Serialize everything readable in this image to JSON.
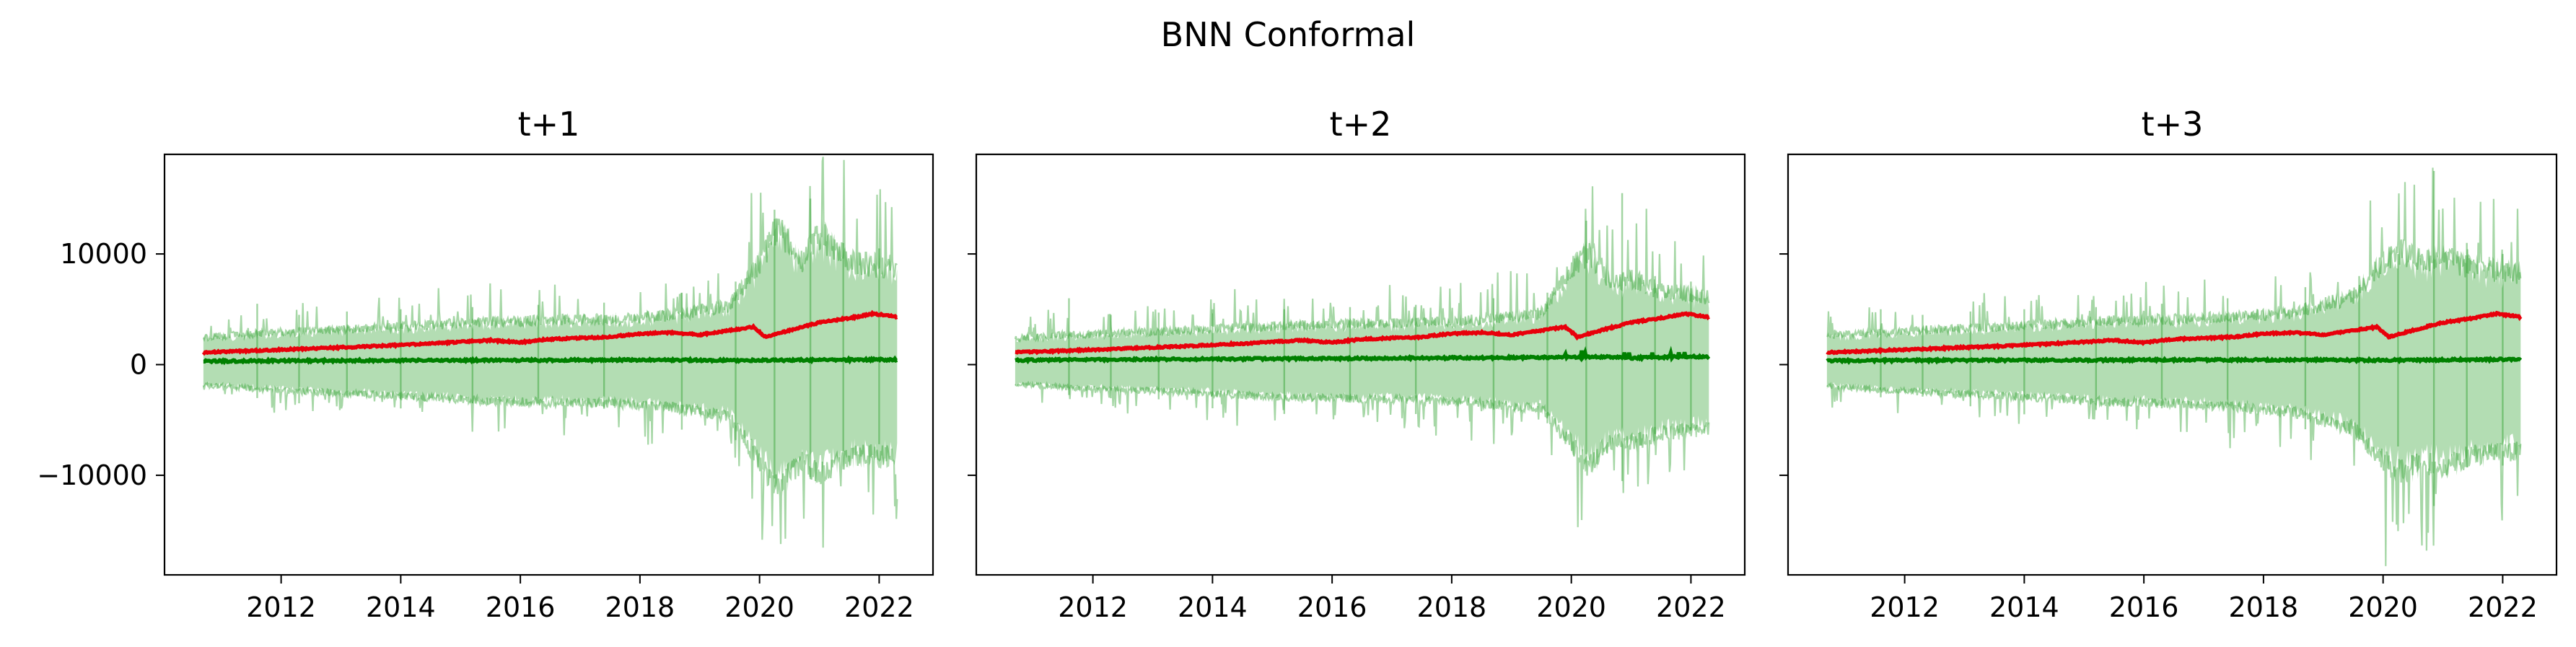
{
  "figure": {
    "title": "BNN Conformal"
  },
  "chart_data": [
    {
      "type": "line",
      "title": "t+1",
      "x_ticks": [
        "2012",
        "2014",
        "2016",
        "2018",
        "2020",
        "2022"
      ],
      "y_ticks": [
        "−10000",
        "0",
        "10000"
      ],
      "y_tick_values": [
        -10000,
        0,
        10000
      ],
      "xlim": [
        2010.05,
        2022.9
      ],
      "ylim": [
        -19000,
        19000
      ],
      "grid": false,
      "series": [
        {
          "role": "actual",
          "color": "#e8000b",
          "x": [
            2010.7,
            2011.5,
            2012.5,
            2013.5,
            2014.5,
            2015.5,
            2016.0,
            2016.5,
            2017.5,
            2018.0,
            2018.5,
            2019.0,
            2019.5,
            2019.9,
            2020.1,
            2020.5,
            2021.0,
            2021.5,
            2021.9,
            2022.3
          ],
          "y": [
            1100,
            1250,
            1450,
            1650,
            1900,
            2200,
            2000,
            2300,
            2500,
            2800,
            2900,
            2700,
            3100,
            3400,
            2500,
            3100,
            3800,
            4200,
            4600,
            4300
          ]
        },
        {
          "role": "predicted",
          "color": "#008000",
          "x": [
            2010.7,
            2012.0,
            2014.0,
            2016.0,
            2018.0,
            2020.0,
            2022.3
          ],
          "y": [
            300,
            350,
            380,
            400,
            420,
            380,
            450
          ]
        },
        {
          "role": "interval",
          "color": "#2ca02c",
          "x": [
            2010.7,
            2011.5,
            2012.5,
            2013.5,
            2014.5,
            2015.5,
            2016.5,
            2017.5,
            2018.5,
            2019.5,
            2020.0,
            2020.3,
            2020.7,
            2021.0,
            2021.5,
            2022.3
          ],
          "upper": [
            2400,
            2700,
            3000,
            3200,
            3500,
            3800,
            3900,
            4000,
            4300,
            5200,
            9000,
            12000,
            9000,
            11500,
            9000,
            8500
          ],
          "lower": [
            -1800,
            -2100,
            -2400,
            -2600,
            -2900,
            -3200,
            -3300,
            -3400,
            -3700,
            -4600,
            -8500,
            -11000,
            -8500,
            -9500,
            -8000,
            -8000
          ],
          "peak_upper": [
            5500,
            4500,
            4800,
            5000,
            5200,
            5400,
            5600,
            6500,
            7500,
            14000,
            15000,
            11000,
            10500
          ],
          "peak_lower": [
            -5000,
            -4000,
            -4300,
            -4500,
            -4800,
            -5000,
            -5200,
            -6000,
            -7000,
            -13000,
            -14800,
            -10500,
            -9800
          ]
        }
      ]
    },
    {
      "type": "line",
      "title": "t+2",
      "x_ticks": [
        "2012",
        "2014",
        "2016",
        "2018",
        "2020",
        "2022"
      ],
      "y_ticks": [
        "−10000",
        "0",
        "10000"
      ],
      "y_tick_values": [
        -10000,
        0,
        10000
      ],
      "xlim": [
        2010.05,
        2022.9
      ],
      "ylim": [
        -19000,
        19000
      ],
      "grid": false,
      "series": [
        {
          "role": "actual",
          "color": "#e8000b",
          "x": [
            2010.7,
            2011.5,
            2012.5,
            2013.5,
            2014.5,
            2015.5,
            2016.0,
            2016.5,
            2017.5,
            2018.0,
            2018.5,
            2019.0,
            2019.5,
            2019.9,
            2020.1,
            2020.5,
            2021.0,
            2021.5,
            2021.9,
            2022.3
          ],
          "y": [
            1100,
            1250,
            1450,
            1650,
            1900,
            2200,
            2000,
            2300,
            2500,
            2800,
            2900,
            2700,
            3100,
            3400,
            2500,
            3100,
            3800,
            4200,
            4600,
            4300
          ]
        },
        {
          "role": "predicted",
          "color": "#008000",
          "x": [
            2010.7,
            2012.0,
            2014.0,
            2016.0,
            2018.0,
            2019.5,
            2020.5,
            2021.0,
            2022.3
          ],
          "y": [
            400,
            450,
            500,
            550,
            600,
            650,
            700,
            600,
            750
          ]
        },
        {
          "role": "interval",
          "color": "#2ca02c",
          "x": [
            2010.7,
            2011.5,
            2012.5,
            2013.5,
            2014.5,
            2015.5,
            2016.5,
            2017.5,
            2018.5,
            2019.5,
            2020.0,
            2020.3,
            2020.7,
            2021.0,
            2021.5,
            2022.3
          ],
          "upper": [
            2300,
            2600,
            2800,
            3000,
            3300,
            3500,
            3600,
            3700,
            4000,
            4500,
            8500,
            10000,
            7000,
            7500,
            6500,
            6000
          ],
          "lower": [
            -1700,
            -2000,
            -2200,
            -2400,
            -2700,
            -2900,
            -3000,
            -3100,
            -3400,
            -3900,
            -7000,
            -9000,
            -6500,
            -7000,
            -6000,
            -5500
          ],
          "peak_upper": [
            6000,
            4500,
            4700,
            5000,
            5000,
            5200,
            5400,
            6000,
            6500,
            13000,
            15500,
            8000,
            7500
          ],
          "peak_lower": [
            -4500,
            -3800,
            -4000,
            -4200,
            -4500,
            -4700,
            -4900,
            -5500,
            -6000,
            -11500,
            -14500,
            -7500,
            -7000
          ]
        }
      ]
    },
    {
      "type": "line",
      "title": "t+3",
      "x_ticks": [
        "2012",
        "2014",
        "2016",
        "2018",
        "2020",
        "2022"
      ],
      "y_ticks": [
        "−10000",
        "0",
        "10000"
      ],
      "y_tick_values": [
        -10000,
        0,
        10000
      ],
      "xlim": [
        2010.05,
        2022.9
      ],
      "ylim": [
        -19000,
        19000
      ],
      "grid": false,
      "series": [
        {
          "role": "actual",
          "color": "#e8000b",
          "x": [
            2010.7,
            2011.5,
            2012.5,
            2013.5,
            2014.5,
            2015.5,
            2016.0,
            2016.5,
            2017.5,
            2018.0,
            2018.5,
            2019.0,
            2019.5,
            2019.9,
            2020.1,
            2020.5,
            2021.0,
            2021.5,
            2021.9,
            2022.3
          ],
          "y": [
            1100,
            1250,
            1450,
            1650,
            1900,
            2200,
            2000,
            2300,
            2500,
            2800,
            2900,
            2700,
            3100,
            3400,
            2500,
            3100,
            3800,
            4200,
            4600,
            4300
          ]
        },
        {
          "role": "predicted",
          "color": "#008000",
          "x": [
            2010.7,
            2012.0,
            2014.0,
            2016.0,
            2018.0,
            2020.0,
            2022.3
          ],
          "y": [
            350,
            380,
            400,
            420,
            430,
            400,
            480
          ]
        },
        {
          "role": "interval",
          "color": "#2ca02c",
          "x": [
            2010.7,
            2011.5,
            2012.5,
            2013.5,
            2014.5,
            2015.5,
            2016.5,
            2017.5,
            2018.5,
            2019.5,
            2020.0,
            2020.3,
            2020.7,
            2021.0,
            2021.5,
            2022.3
          ],
          "upper": [
            2500,
            2800,
            3100,
            3300,
            3600,
            3900,
            4000,
            4200,
            4600,
            6000,
            9000,
            10000,
            9000,
            9500,
            8500,
            8000
          ],
          "lower": [
            -1900,
            -2200,
            -2500,
            -2700,
            -3000,
            -3300,
            -3400,
            -3700,
            -4200,
            -5600,
            -8500,
            -9500,
            -8500,
            -9000,
            -8000,
            -7500
          ],
          "peak_upper": [
            5000,
            4500,
            4800,
            5000,
            5200,
            5500,
            6000,
            7000,
            8000,
            10000,
            17500,
            11000,
            10000
          ],
          "peak_lower": [
            -4800,
            -4000,
            -4300,
            -4500,
            -4800,
            -5200,
            -5500,
            -6500,
            -8500,
            -12000,
            -17000,
            -10000,
            -9500
          ]
        }
      ]
    }
  ]
}
